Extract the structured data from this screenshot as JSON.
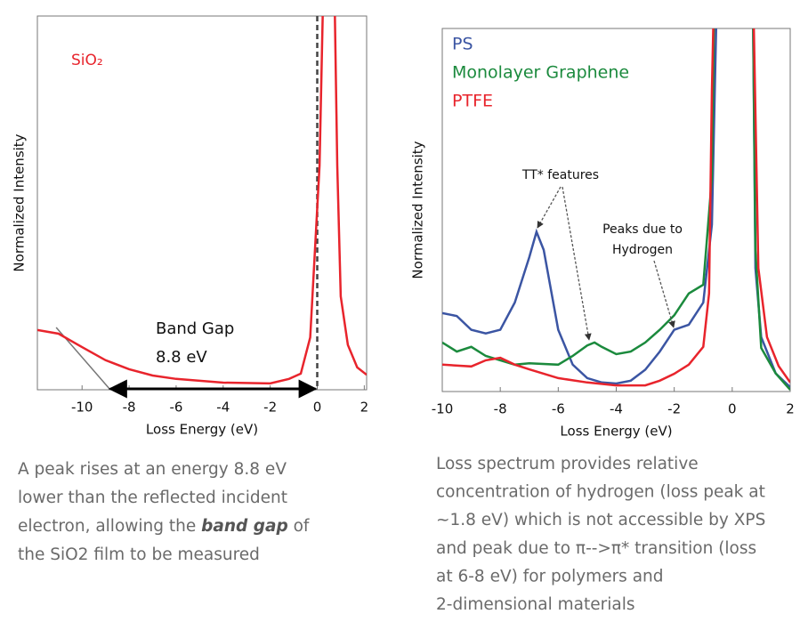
{
  "chart_data": [
    {
      "type": "line",
      "xlabel": "Loss Energy (eV)",
      "ylabel": "Normalized Intensity",
      "xlim": [
        -11.9,
        2.1
      ],
      "xticks": [
        -10,
        -8,
        -6,
        -4,
        -2,
        0,
        2
      ],
      "ylim": [
        0,
        100
      ],
      "series": [
        {
          "name": "SiO₂",
          "color": "#e8242c",
          "x": [
            -11.9,
            -11,
            -10,
            -9,
            -8,
            -7,
            -6,
            -4,
            -2,
            -1.2,
            -0.7,
            -0.3,
            0.1,
            0.3,
            0.7,
            0.85,
            1.0,
            1.3,
            1.7,
            2.1
          ],
          "values": [
            16,
            15,
            11.4,
            7.9,
            5.5,
            3.8,
            2.9,
            1.9,
            1.7,
            2.9,
            4.3,
            14,
            60,
            120,
            120,
            60,
            25,
            12,
            6,
            4
          ]
        }
      ],
      "annotations": [
        "Band Gap",
        "8.8 eV"
      ]
    },
    {
      "type": "line",
      "xlabel": "Loss Energy (eV)",
      "ylabel": "Normalized Intensity",
      "xlim": [
        -10,
        2
      ],
      "xticks": [
        -10,
        -8,
        -6,
        -4,
        -2,
        0,
        2
      ],
      "ylim": [
        0,
        100
      ],
      "series": [
        {
          "name": "PS",
          "color": "#3b55a3",
          "x": [
            -10,
            -9.5,
            -9,
            -8.5,
            -8,
            -7.5,
            -7,
            -6.75,
            -6.5,
            -6,
            -5.5,
            -5,
            -4.5,
            -4,
            -3.5,
            -3,
            -2.5,
            -2,
            -1.5,
            -1,
            -0.7,
            -0.5,
            0.7,
            0.8,
            1,
            1.5,
            2
          ],
          "values": [
            21.6,
            20.8,
            17,
            16,
            17,
            24.5,
            37,
            44,
            39,
            17,
            7.4,
            3.7,
            2.5,
            2.2,
            3,
            6,
            11,
            17,
            18.4,
            24.5,
            46,
            120,
            120,
            34,
            15,
            5,
            1.2
          ]
        },
        {
          "name": "Monolayer Graphene",
          "color": "#1b8a3d",
          "x": [
            -10,
            -9.5,
            -9,
            -8.5,
            -8,
            -7.5,
            -7,
            -6,
            -5.5,
            -5,
            -4.75,
            -4.5,
            -4,
            -3.5,
            -3,
            -2.5,
            -2,
            -1.5,
            -1,
            -0.7,
            -0.6,
            0.7,
            0.8,
            1,
            1.5,
            2
          ],
          "values": [
            13.5,
            11,
            12.3,
            9.8,
            8.6,
            7.4,
            7.8,
            7.4,
            9.8,
            12.7,
            13.5,
            12.3,
            10.3,
            11,
            13.5,
            17,
            21,
            27,
            29.4,
            59,
            120,
            120,
            39,
            12,
            5,
            0.5
          ]
        },
        {
          "name": "PTFE",
          "color": "#e8242c",
          "x": [
            -10,
            -9,
            -8.5,
            -8,
            -7.5,
            -7,
            -6,
            -5,
            -4,
            -3,
            -2.5,
            -2,
            -1.5,
            -1,
            -0.8,
            -0.7,
            -0.6,
            0.7,
            0.9,
            1.2,
            1.6,
            2
          ],
          "values": [
            7.4,
            6.9,
            8.6,
            9.3,
            7.4,
            6.1,
            3.7,
            2.5,
            1.7,
            1.7,
            3,
            4.9,
            7.4,
            12.3,
            27,
            83,
            120,
            120,
            34,
            15,
            7,
            2.5
          ]
        }
      ],
      "annotations": [
        "TT* features",
        "Peaks due to",
        "Hydrogen"
      ]
    }
  ],
  "captions": [
    [
      "A peak rises at an energy 8.8 eV",
      "lower than the reflected incident",
      [
        "electron, allowing the ",
        "band gap",
        " of"
      ],
      "the SiO2 film to be measured"
    ],
    [
      "Loss spectrum provides relative",
      "concentration of hydrogen (loss peak at",
      "~1.8 eV) which is not accessible by XPS",
      "and peak due to π-->π* transition (loss",
      "at 6-8 eV) for polymers and",
      "2-dimensional materials"
    ]
  ]
}
